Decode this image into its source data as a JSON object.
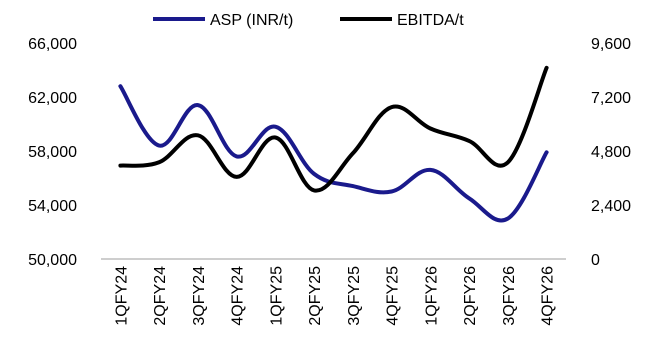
{
  "chart_data": {
    "type": "line",
    "categories": [
      "1QFY24",
      "2QFY24",
      "3QFY24",
      "4QFY24",
      "1QFY25",
      "2QFY25",
      "3QFY25",
      "4QFY25",
      "1QFY26",
      "2QFY26",
      "3QFY26",
      "4QFY26"
    ],
    "series": [
      {
        "name": "ASP (INR/t)",
        "axis": "left",
        "color": "#1a1a8c",
        "values": [
          62800,
          58400,
          61400,
          57600,
          59800,
          56300,
          55400,
          55000,
          56600,
          54500,
          53000,
          57900
        ]
      },
      {
        "name": "EBITDA/t",
        "axis": "right",
        "color": "#000000",
        "values": [
          4150,
          4300,
          5500,
          3650,
          5400,
          3050,
          4700,
          6750,
          5800,
          5250,
          4300,
          8500
        ]
      }
    ],
    "y_left": {
      "min": 50000,
      "max": 66000,
      "ticks": [
        "50,000",
        "54,000",
        "58,000",
        "62,000",
        "66,000"
      ]
    },
    "y_right": {
      "min": 0,
      "max": 9600,
      "ticks": [
        "0",
        "2,400",
        "4,800",
        "7,200",
        "9,600"
      ]
    },
    "grid": false,
    "legend_position": "top-center"
  }
}
